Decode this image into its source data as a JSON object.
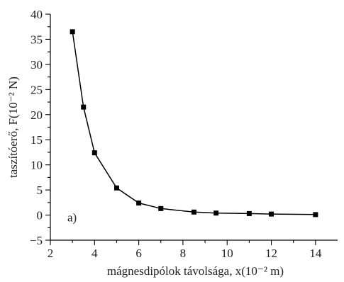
{
  "chart_data": {
    "type": "line",
    "xlabel": "mágnesdipólok távolsága, x(10⁻² m)",
    "ylabel": "taszítóerő, F(10⁻² N)",
    "xlim": [
      2,
      15
    ],
    "ylim": [
      -5,
      40
    ],
    "xticks": [
      2,
      4,
      6,
      8,
      10,
      12,
      14
    ],
    "yticks": [
      -5,
      0,
      5,
      10,
      15,
      20,
      25,
      30,
      35,
      40
    ],
    "annotation": "a)",
    "series": [
      {
        "x": [
          3,
          3.5,
          4,
          5,
          6,
          7,
          8.5,
          9.5,
          11,
          12,
          14
        ],
        "y": [
          36.5,
          21.5,
          12.4,
          5.4,
          2.4,
          1.3,
          0.6,
          0.4,
          0.3,
          0.2,
          0.1
        ]
      }
    ]
  }
}
